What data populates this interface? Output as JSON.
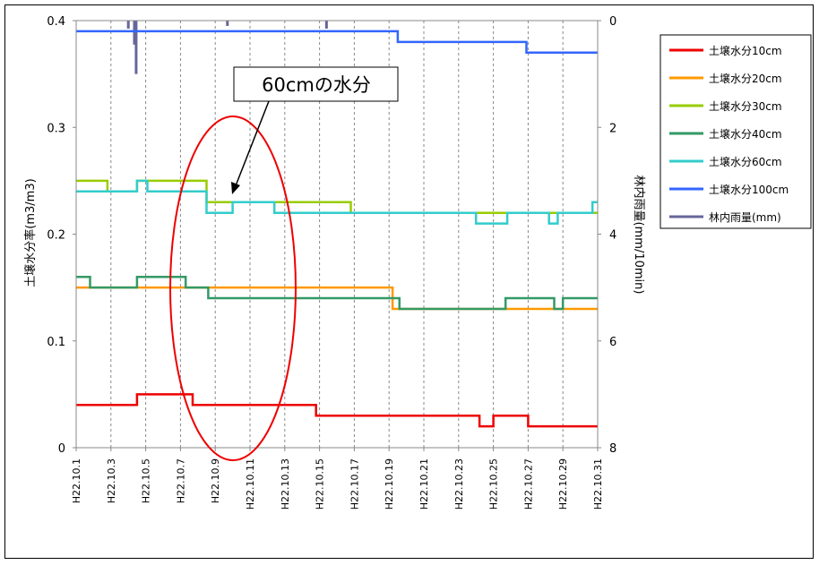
{
  "chart_data": {
    "type": "line",
    "title": "",
    "ylabel": "土壌水分率(m3/m3)",
    "y2label": "林内雨量(mm/10min)",
    "ylim": [
      0,
      0.4
    ],
    "y2lim": [
      8,
      0
    ],
    "y2_inverted": true,
    "grid": "vertical dashed",
    "legend_position": "right",
    "yticks": [
      "0",
      "0.1",
      "0.2",
      "0.3",
      "0.4"
    ],
    "y2ticks": [
      "0",
      "2",
      "4",
      "6",
      "8"
    ],
    "xticks": [
      "H22.10.1",
      "H22.10.3",
      "H22.10.5",
      "H22.10.7",
      "H22.10.9",
      "H22.10.11",
      "H22.10.13",
      "H22.10.15",
      "H22.10.17",
      "H22.10.19",
      "H22.10.21",
      "H22.10.23",
      "H22.10.25",
      "H22.10.27",
      "H22.10.29",
      "H22.10.31"
    ],
    "xrange": [
      1,
      31
    ],
    "annotation": "60cmの水分",
    "series": [
      {
        "name": "土壌水分10cm",
        "color": "#ee0000",
        "axis": "left",
        "points": [
          [
            1,
            0.04
          ],
          [
            4.5,
            0.04
          ],
          [
            4.5,
            0.05
          ],
          [
            7.7,
            0.05
          ],
          [
            7.7,
            0.04
          ],
          [
            14.8,
            0.04
          ],
          [
            14.8,
            0.03
          ],
          [
            24.2,
            0.03
          ],
          [
            24.2,
            0.02
          ],
          [
            25.0,
            0.02
          ],
          [
            25.0,
            0.03
          ],
          [
            27.0,
            0.03
          ],
          [
            27.0,
            0.02
          ],
          [
            31,
            0.02
          ]
        ]
      },
      {
        "name": "土壌水分20cm",
        "color": "#ff9900",
        "axis": "left",
        "points": [
          [
            1,
            0.15
          ],
          [
            19.2,
            0.15
          ],
          [
            19.2,
            0.13
          ],
          [
            31,
            0.13
          ]
        ]
      },
      {
        "name": "土壌水分30cm",
        "color": "#99cc00",
        "axis": "left",
        "points": [
          [
            1,
            0.25
          ],
          [
            2.8,
            0.25
          ],
          [
            2.8,
            0.24
          ],
          [
            4.5,
            0.24
          ],
          [
            4.5,
            0.25
          ],
          [
            8.5,
            0.25
          ],
          [
            8.5,
            0.23
          ],
          [
            16.8,
            0.23
          ],
          [
            16.8,
            0.22
          ],
          [
            31,
            0.22
          ]
        ]
      },
      {
        "name": "土壌水分40cm",
        "color": "#339966",
        "axis": "left",
        "points": [
          [
            1,
            0.16
          ],
          [
            1.8,
            0.16
          ],
          [
            1.8,
            0.15
          ],
          [
            4.5,
            0.15
          ],
          [
            4.5,
            0.16
          ],
          [
            7.3,
            0.16
          ],
          [
            7.3,
            0.15
          ],
          [
            8.6,
            0.15
          ],
          [
            8.6,
            0.14
          ],
          [
            19.6,
            0.14
          ],
          [
            19.6,
            0.13
          ],
          [
            25.7,
            0.13
          ],
          [
            25.7,
            0.14
          ],
          [
            28.5,
            0.14
          ],
          [
            28.5,
            0.13
          ],
          [
            29.0,
            0.13
          ],
          [
            29.0,
            0.14
          ],
          [
            31,
            0.14
          ]
        ]
      },
      {
        "name": "土壌水分60cm",
        "color": "#33cccc",
        "axis": "left",
        "points": [
          [
            1,
            0.24
          ],
          [
            4.5,
            0.24
          ],
          [
            4.5,
            0.25
          ],
          [
            5.1,
            0.25
          ],
          [
            5.1,
            0.24
          ],
          [
            8.5,
            0.24
          ],
          [
            8.5,
            0.22
          ],
          [
            10.0,
            0.22
          ],
          [
            10.0,
            0.23
          ],
          [
            12.4,
            0.23
          ],
          [
            12.4,
            0.22
          ],
          [
            24.0,
            0.22
          ],
          [
            24.0,
            0.21
          ],
          [
            25.8,
            0.21
          ],
          [
            25.8,
            0.22
          ],
          [
            28.2,
            0.22
          ],
          [
            28.2,
            0.21
          ],
          [
            28.7,
            0.21
          ],
          [
            28.7,
            0.22
          ],
          [
            30.7,
            0.22
          ],
          [
            30.7,
            0.23
          ],
          [
            31,
            0.23
          ]
        ]
      },
      {
        "name": "土壌水分100cm",
        "color": "#3366ff",
        "axis": "left",
        "points": [
          [
            1,
            0.39
          ],
          [
            19.5,
            0.39
          ],
          [
            19.5,
            0.38
          ],
          [
            26.9,
            0.38
          ],
          [
            26.9,
            0.37
          ],
          [
            31,
            0.37
          ]
        ]
      },
      {
        "name": "林内雨量(mm)",
        "color": "#666699",
        "axis": "right",
        "style": "bars",
        "points": [
          [
            4.0,
            0.15
          ],
          [
            4.35,
            0.45
          ],
          [
            4.45,
            1.0
          ],
          [
            9.7,
            0.1
          ],
          [
            15.4,
            0.15
          ]
        ]
      }
    ]
  }
}
